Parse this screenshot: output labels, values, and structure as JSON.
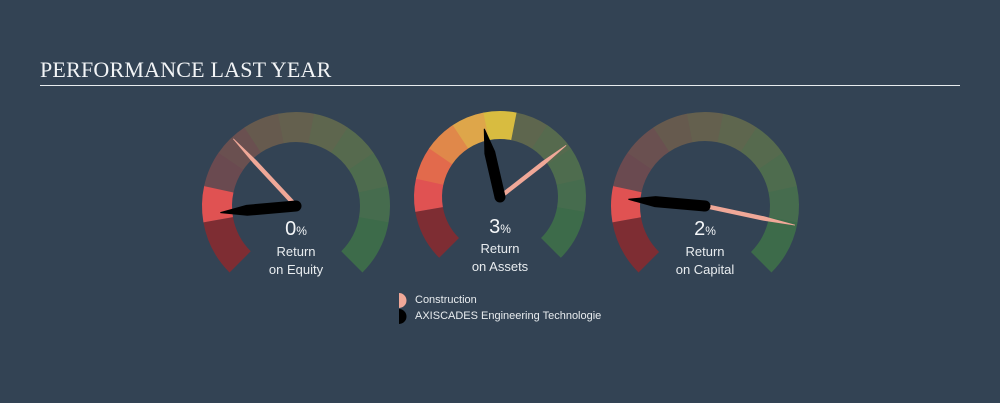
{
  "header": {
    "title": "PERFORMANCE LAST YEAR"
  },
  "legend": {
    "items": [
      {
        "label": "Construction",
        "color": "#f0a898",
        "series": "industry"
      },
      {
        "label": "AXISCADES Engineering Technologie",
        "color": "#000000",
        "series": "company"
      }
    ]
  },
  "gauges": [
    {
      "id": "roe",
      "value": "0",
      "unit": "%",
      "label_line1": "Return",
      "label_line2": "on Equity"
    },
    {
      "id": "roa",
      "value": "3",
      "unit": "%",
      "label_line1": "Return",
      "label_line2": "on Assets"
    },
    {
      "id": "roc",
      "value": "2",
      "unit": "%",
      "label_line1": "Return",
      "label_line2": "on Capital"
    }
  ],
  "colors": {
    "background": "#334354",
    "industry_needle": "#f0a898",
    "company_needle": "#000000",
    "low_block": "#7e2d33",
    "high_block": "#3d6b4a",
    "segments_bright": [
      "#e05252",
      "#e26a4c",
      "#e0884a",
      "#dea64a",
      "#d8bc40",
      "#9a9a52",
      "#7e9a56",
      "#6a9456",
      "#5a8a54"
    ],
    "segments_dim": [
      "#6a4450",
      "#6a4a50",
      "#6a5050",
      "#665a4e",
      "#64604e",
      "#5e664e",
      "#566a4e",
      "#4e6c4e",
      "#466c4e"
    ]
  },
  "chart_data": {
    "type": "gauge",
    "title": "PERFORMANCE LAST YEAR",
    "legend_position": "bottom-center",
    "series": [
      {
        "name": "AXISCADES Engineering Technologie",
        "color": "#000000"
      },
      {
        "name": "Construction",
        "color": "#f0a898"
      }
    ],
    "gauges": [
      {
        "metric": "Return on Equity",
        "company_value_pct": 0,
        "company_needle_deg": -95,
        "industry_needle_deg": -43
      },
      {
        "metric": "Return on Assets",
        "company_value_pct": 3,
        "company_needle_deg": -13,
        "industry_needle_deg": 52
      },
      {
        "metric": "Return on Capital",
        "company_value_pct": 2,
        "company_needle_deg": -85,
        "industry_needle_deg": 102
      }
    ],
    "arc_range_deg": [
      -135,
      135
    ]
  }
}
